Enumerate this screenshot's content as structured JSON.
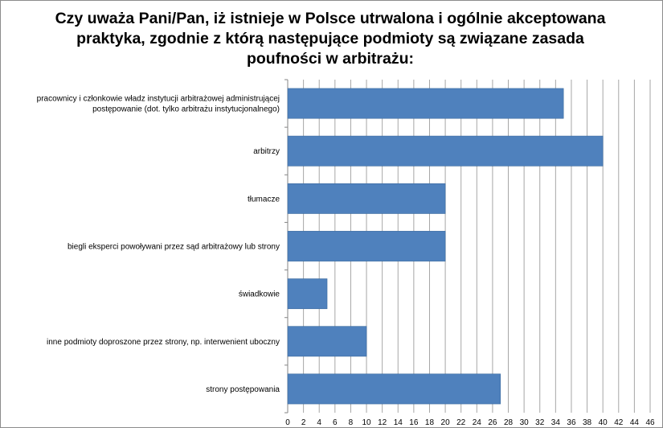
{
  "chart_data": {
    "type": "bar",
    "orientation": "horizontal",
    "title": "Czy uważa Pani/Pan, iż istnieje w Polsce utrwalona i ogólnie akceptowana praktyka, zgodnie z którą następujące podmioty są związane zasada poufności w arbitrażu:",
    "categories": [
      [
        "pracownicy i członkowie władz instytucji arbitrażowej administrującej",
        "postępowanie (dot. tylko arbitrażu instytucjonalnego)"
      ],
      [
        "arbitrzy"
      ],
      [
        "tłumacze"
      ],
      [
        "biegli eksperci powoływani przez sąd arbitrażowy lub strony"
      ],
      [
        "świadkowie"
      ],
      [
        "inne podmioty doproszone przez strony, np. interwenient uboczny"
      ],
      [
        "strony postępowania"
      ]
    ],
    "values": [
      35,
      40,
      20,
      20,
      5,
      10,
      27
    ],
    "xlim": [
      0,
      46
    ],
    "xticks": [
      0,
      2,
      4,
      6,
      8,
      10,
      12,
      14,
      16,
      18,
      20,
      22,
      24,
      26,
      28,
      30,
      32,
      34,
      36,
      38,
      40,
      42,
      44,
      46
    ],
    "grid": true,
    "legend": "none",
    "bar_color": "#4f81bd",
    "grid_color": "#a6a6a6"
  }
}
